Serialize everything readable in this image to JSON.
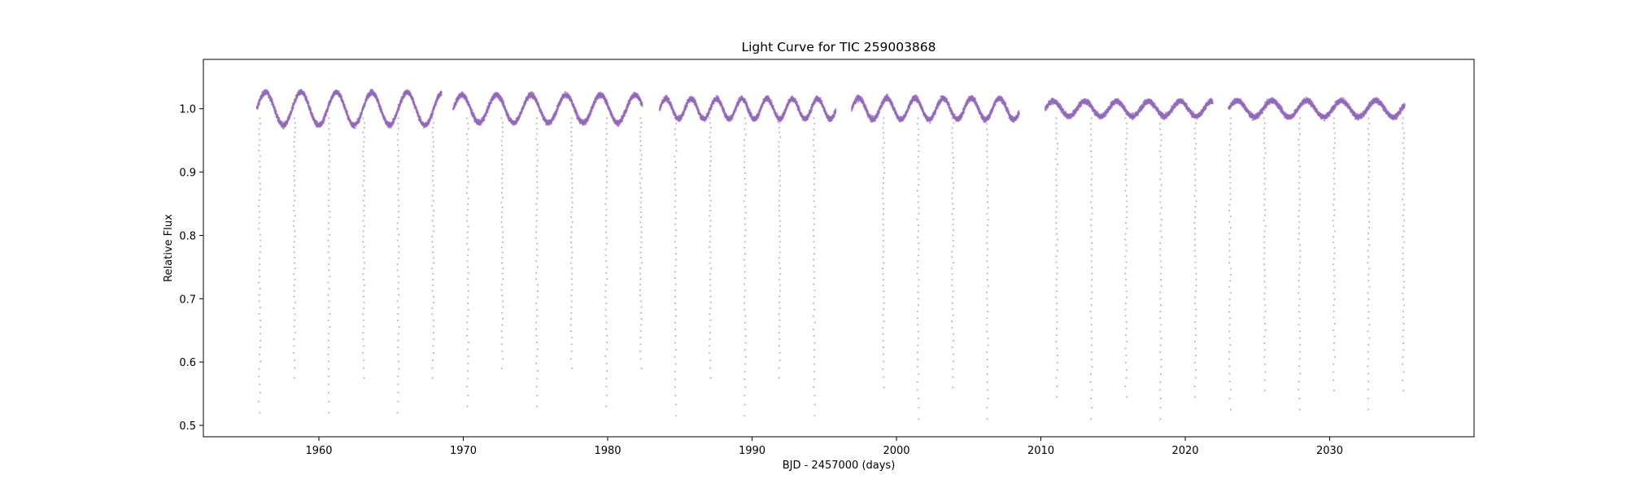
{
  "chart_data": {
    "type": "scatter",
    "title": "Light Curve for TIC 259003868",
    "xlabel": "BJD - 2457000 (days)",
    "ylabel": "Relative Flux",
    "xlim": [
      1952,
      2040
    ],
    "ylim": [
      0.482,
      1.078
    ],
    "x_ticks": [
      1960,
      1970,
      1980,
      1990,
      2000,
      2010,
      2020,
      2030
    ],
    "y_ticks": [
      0.5,
      0.6,
      0.7,
      0.8,
      0.9,
      1.0
    ],
    "x_tick_labels": [
      "1960",
      "1970",
      "1980",
      "1990",
      "2000",
      "2010",
      "2020",
      "2030"
    ],
    "y_tick_labels": [
      "0.5",
      "0.6",
      "0.7",
      "0.8",
      "0.9",
      "1.0"
    ],
    "grid": false,
    "legend": "none",
    "series": [
      {
        "marker_color": "#9467bd",
        "baseline_flux": 1.0,
        "segments": [
          {
            "start": 1955.7,
            "end": 1968.5,
            "spot_amplitude": 0.026,
            "spot_period": 2.45,
            "eclipse_depth_min": 0.52,
            "eclipse_alt_min": 0.575
          },
          {
            "start": 1969.3,
            "end": 1982.4,
            "spot_amplitude": 0.022,
            "spot_period": 2.4,
            "eclipse_depth_min": 0.53,
            "eclipse_alt_min": 0.59
          },
          {
            "start": 1983.6,
            "end": 1995.8,
            "spot_amplitude": 0.016,
            "spot_period": 1.75,
            "eclipse_depth_min": 0.515,
            "eclipse_alt_min": 0.575
          },
          {
            "start": 1996.9,
            "end": 2008.5,
            "spot_amplitude": 0.017,
            "spot_period": 1.95,
            "eclipse_depth_min": 0.51,
            "eclipse_alt_min": 0.56
          },
          {
            "start": 2010.3,
            "end": 2021.9,
            "spot_amplitude": 0.012,
            "spot_period": 2.2,
            "eclipse_depth_min": 0.51,
            "eclipse_alt_min": 0.545
          },
          {
            "start": 2023.0,
            "end": 2035.2,
            "spot_amplitude": 0.013,
            "spot_period": 2.4,
            "eclipse_depth_min": 0.525,
            "eclipse_alt_min": 0.555
          }
        ],
        "eclipse_period": 2.4,
        "eclipse_first_epoch": 1955.9
      }
    ]
  }
}
